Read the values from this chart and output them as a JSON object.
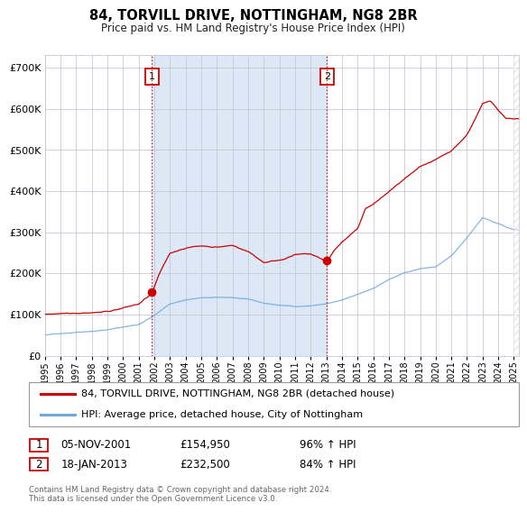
{
  "title": "84, TORVILL DRIVE, NOTTINGHAM, NG8 2BR",
  "subtitle": "Price paid vs. HM Land Registry's House Price Index (HPI)",
  "legend_line1": "84, TORVILL DRIVE, NOTTINGHAM, NG8 2BR (detached house)",
  "legend_line2": "HPI: Average price, detached house, City of Nottingham",
  "annotation1_date": "05-NOV-2001",
  "annotation1_price": "£154,950",
  "annotation1_hpi": "96% ↑ HPI",
  "annotation2_date": "18-JAN-2013",
  "annotation2_price": "£232,500",
  "annotation2_hpi": "84% ↑ HPI",
  "footer": "Contains HM Land Registry data © Crown copyright and database right 2024.\nThis data is licensed under the Open Government Licence v3.0.",
  "red_color": "#cc0000",
  "blue_color": "#6fa8dc",
  "bg_color": "#dce8f5",
  "sale1_x": 2001.85,
  "sale2_x": 2013.05,
  "sale1_price": 154950,
  "sale2_price": 232500,
  "ylim_max": 730000,
  "yticks": [
    0,
    100000,
    200000,
    300000,
    400000,
    500000,
    600000,
    700000
  ],
  "xmin": 1995,
  "xmax": 2025.3
}
